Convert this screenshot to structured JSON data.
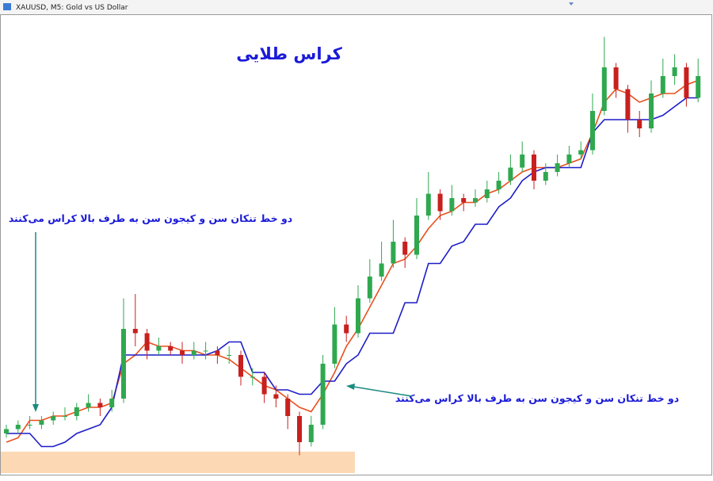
{
  "window_title": "XAUUSD, M5:  Gold vs US Dollar",
  "chart_data": {
    "type": "candlestick",
    "title": "کراس طلایی",
    "annotations": [
      "دو خط تنکان سن و کیجون سن به طرف بالا کراس می‌کنند",
      "دو خط تنکان سن و کیجون سن به طرف بالا کراس می‌کنند"
    ],
    "ylim": [
      0,
      100
    ],
    "up_color": "#2fa84f",
    "down_color": "#c8201e",
    "open": [
      6,
      7,
      8,
      8,
      9,
      10,
      10,
      12,
      13,
      12,
      14,
      30,
      29,
      25,
      26,
      25,
      24,
      25,
      25,
      24,
      24,
      19,
      19,
      15,
      14,
      10,
      4,
      8,
      22,
      31,
      29,
      37,
      42,
      45,
      50,
      47,
      56,
      61,
      57,
      60,
      59,
      60,
      62,
      64,
      67,
      70,
      64,
      66,
      68,
      70,
      71,
      80,
      90,
      85,
      78,
      76,
      84,
      88,
      90,
      83
    ],
    "high": [
      8,
      9,
      10,
      10,
      11,
      12,
      13,
      15,
      14,
      16,
      37,
      38,
      30,
      28,
      27,
      27,
      27,
      27,
      26,
      26,
      25,
      21,
      20,
      17,
      15,
      11,
      10,
      24,
      35,
      33,
      40,
      46,
      50,
      55,
      51,
      60,
      66,
      62,
      63,
      61,
      62,
      64,
      66,
      70,
      73,
      71,
      68,
      70,
      72,
      73,
      84,
      97,
      91,
      86,
      80,
      87,
      92,
      93,
      91,
      92
    ],
    "low": [
      5,
      6,
      7,
      7,
      8,
      9,
      9,
      11,
      10,
      11,
      13,
      26,
      23,
      24,
      24,
      22,
      23,
      23,
      22,
      22,
      17,
      17,
      13,
      12,
      7,
      1,
      3,
      7,
      21,
      27,
      28,
      36,
      41,
      44,
      44,
      46,
      55,
      55,
      56,
      57,
      58,
      59,
      61,
      63,
      66,
      62,
      63,
      65,
      67,
      69,
      70,
      79,
      83,
      75,
      74,
      75,
      83,
      86,
      81,
      82
    ],
    "close": [
      7,
      8,
      8,
      9,
      10,
      10,
      12,
      13,
      12,
      14,
      30,
      29,
      25,
      26,
      25,
      24,
      25,
      25,
      24,
      24,
      19,
      19,
      15,
      14,
      10,
      4,
      8,
      22,
      31,
      29,
      37,
      42,
      45,
      50,
      47,
      56,
      61,
      57,
      60,
      59,
      60,
      62,
      64,
      67,
      70,
      64,
      66,
      68,
      70,
      71,
      80,
      90,
      85,
      78,
      76,
      84,
      88,
      90,
      83,
      88
    ],
    "lines": [
      {
        "color": "#e8501e",
        "values": [
          4,
          5,
          9,
          9,
          10,
          10,
          11,
          12,
          12,
          13,
          22,
          24,
          27,
          26,
          26,
          25,
          25,
          24,
          24,
          23,
          21,
          19,
          17,
          16,
          14,
          12,
          11,
          15,
          20,
          26,
          30,
          35,
          40,
          45,
          46,
          49,
          53,
          56,
          57,
          59,
          59,
          61,
          62,
          64,
          66,
          67,
          67,
          67,
          68,
          69,
          75,
          82,
          85,
          84,
          82,
          83,
          84,
          84,
          86,
          87
        ]
      },
      {
        "color": "#1c1cc8",
        "values": [
          6,
          6,
          6,
          3,
          3,
          4,
          6,
          7,
          8,
          12,
          24,
          24,
          24,
          24,
          24,
          24,
          24,
          24,
          25,
          27,
          27,
          20,
          20,
          16,
          16,
          15,
          15,
          18,
          18,
          22,
          24,
          29,
          29,
          29,
          36,
          36,
          45,
          45,
          49,
          50,
          54,
          54,
          58,
          60,
          64,
          66,
          67,
          67,
          67,
          67,
          75,
          78,
          78,
          78,
          78,
          78,
          79,
          81,
          83,
          83
        ]
      }
    ]
  }
}
